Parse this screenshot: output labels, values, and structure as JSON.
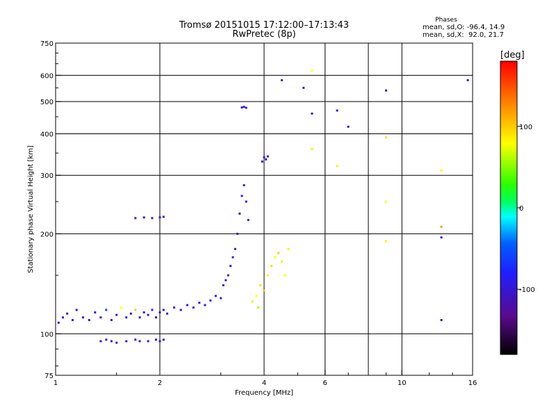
{
  "chart_data": {
    "type": "scatter",
    "title": "Tromsø 20151015 17:12:00–17:13:43",
    "subtitle": "RwPretec (8p)",
    "xlabel": "Frequency [MHz]",
    "ylabel": "Stationary phase Virtual Height [km]",
    "x_scale": "log",
    "y_scale": "log",
    "xlim": [
      1,
      16
    ],
    "ylim": [
      75,
      750
    ],
    "x_ticks": [
      1,
      2,
      4,
      6,
      10,
      16
    ],
    "x_tick_labels": [
      "1",
      "2",
      "4",
      "6",
      "10",
      "16"
    ],
    "x_gridlines": [
      2,
      4,
      6,
      8,
      10
    ],
    "y_ticks": [
      75,
      100,
      200,
      300,
      400,
      500,
      600,
      750
    ],
    "y_tick_labels": [
      "75",
      "100",
      "200",
      "300",
      "400",
      "500",
      "600",
      "750"
    ],
    "y_gridlines": [
      100,
      200,
      300,
      400,
      500,
      600
    ],
    "grid": true,
    "phase_info": {
      "title": "Phases",
      "line_o": "mean, sd,O: -96.4, 14.9",
      "line_x": "mean, sd,X:  92.0, 21.7"
    },
    "colorbar": {
      "label": "[deg]",
      "range": [
        -180,
        180
      ],
      "ticks": [
        100,
        0,
        -100
      ],
      "tick_labels": [
        "100",
        "0",
        "-100"
      ],
      "colormap": "rainbow (black-purple-blue-cyan-green-yellow-red)"
    },
    "series": [
      {
        "points": [
          [
            1.02,
            108,
            -100
          ],
          [
            1.05,
            112,
            -95
          ],
          [
            1.08,
            115,
            -110
          ],
          [
            1.12,
            110,
            -100
          ],
          [
            1.15,
            118,
            -90
          ],
          [
            1.2,
            112,
            -105
          ],
          [
            1.25,
            110,
            -100
          ],
          [
            1.3,
            116,
            -95
          ],
          [
            1.35,
            112,
            -100
          ],
          [
            1.4,
            118,
            -60
          ],
          [
            1.45,
            110,
            -105
          ],
          [
            1.5,
            114,
            -100
          ],
          [
            1.55,
            120,
            80
          ],
          [
            1.6,
            112,
            -95
          ],
          [
            1.65,
            115,
            -100
          ],
          [
            1.7,
            118,
            100
          ],
          [
            1.75,
            112,
            -100
          ],
          [
            1.8,
            116,
            -90
          ],
          [
            1.85,
            114,
            -100
          ],
          [
            1.9,
            118,
            -95
          ],
          [
            1.95,
            112,
            -100
          ],
          [
            2.0,
            116,
            -100
          ],
          [
            2.05,
            118,
            -95
          ],
          [
            2.1,
            115,
            -100
          ],
          [
            2.2,
            120,
            -90
          ],
          [
            2.3,
            118,
            -100
          ],
          [
            2.4,
            122,
            -95
          ],
          [
            2.5,
            120,
            -100
          ],
          [
            2.6,
            124,
            -90
          ],
          [
            2.7,
            122,
            -100
          ],
          [
            2.8,
            126,
            -85
          ],
          [
            2.9,
            130,
            -100
          ],
          [
            3.0,
            128,
            -90
          ],
          [
            3.05,
            140,
            -110
          ],
          [
            3.1,
            145,
            -100
          ],
          [
            3.15,
            150,
            -105
          ],
          [
            3.2,
            160,
            -110
          ],
          [
            3.25,
            170,
            -100
          ],
          [
            3.3,
            180,
            -110
          ],
          [
            3.35,
            200,
            -105
          ],
          [
            3.4,
            230,
            -110
          ],
          [
            3.45,
            260,
            -100
          ],
          [
            3.5,
            280,
            -110
          ],
          [
            3.55,
            250,
            -100
          ],
          [
            3.6,
            220,
            -110
          ]
        ]
      },
      {
        "points": [
          [
            1.35,
            95,
            -100
          ],
          [
            1.4,
            96,
            -95
          ],
          [
            1.45,
            95,
            -100
          ],
          [
            1.5,
            94,
            -100
          ],
          [
            1.6,
            95,
            -90
          ],
          [
            1.7,
            96,
            -100
          ],
          [
            1.75,
            95,
            -95
          ],
          [
            1.85,
            95,
            -100
          ],
          [
            1.95,
            96,
            -100
          ],
          [
            2.0,
            95,
            -95
          ],
          [
            2.05,
            96,
            -100
          ],
          [
            1.7,
            223,
            -100
          ],
          [
            1.8,
            224,
            -105
          ],
          [
            1.9,
            223,
            -100
          ],
          [
            2.0,
            224,
            -100
          ],
          [
            2.05,
            225,
            -95
          ],
          [
            3.45,
            480,
            -110
          ],
          [
            3.5,
            482,
            -100
          ],
          [
            3.55,
            479,
            -105
          ],
          [
            3.95,
            330,
            -100
          ],
          [
            4.0,
            340,
            -105
          ],
          [
            4.05,
            335,
            -100
          ],
          [
            4.1,
            342,
            -95
          ],
          [
            4.5,
            580,
            -100
          ],
          [
            5.2,
            550,
            -95
          ],
          [
            5.5,
            460,
            -100
          ],
          [
            6.5,
            470,
            -100
          ],
          [
            7.0,
            420,
            -100
          ],
          [
            9.0,
            540,
            -100
          ],
          [
            13.0,
            195,
            -100
          ],
          [
            13.0,
            110,
            -100
          ],
          [
            15.5,
            580,
            -100
          ]
        ]
      },
      {
        "points": [
          [
            3.8,
            130,
            80
          ],
          [
            3.9,
            140,
            90
          ],
          [
            4.0,
            135,
            100
          ],
          [
            4.1,
            150,
            85
          ],
          [
            4.2,
            160,
            95
          ],
          [
            4.3,
            170,
            80
          ],
          [
            4.4,
            175,
            100
          ],
          [
            4.5,
            165,
            90
          ],
          [
            4.6,
            150,
            80
          ],
          [
            4.7,
            180,
            85
          ],
          [
            3.7,
            125,
            70
          ],
          [
            3.85,
            120,
            60
          ],
          [
            5.5,
            620,
            80
          ],
          [
            5.5,
            360,
            90
          ],
          [
            6.5,
            320,
            85
          ],
          [
            9.0,
            390,
            90
          ],
          [
            9.0,
            250,
            80
          ],
          [
            9.0,
            190,
            85
          ],
          [
            13.0,
            310,
            85
          ],
          [
            13.0,
            210,
            120
          ]
        ]
      }
    ]
  }
}
